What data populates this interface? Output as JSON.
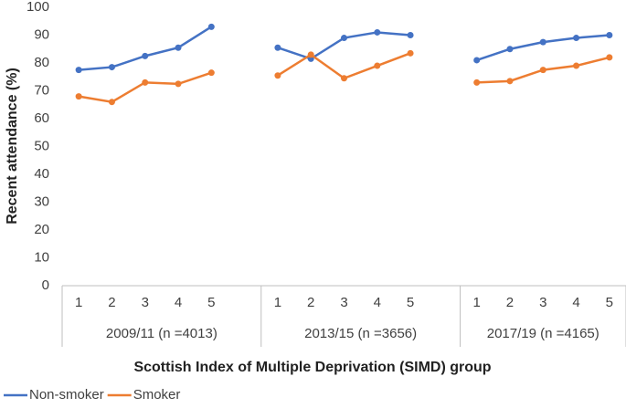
{
  "chart_data": {
    "type": "line",
    "x_label": "Scottish Index of Multiple Deprivation (SIMD) group",
    "y_label": "Recent attendance (%)",
    "categories": [
      "1",
      "2",
      "3",
      "4",
      "5",
      null,
      "1",
      "2",
      "3",
      "4",
      "5",
      null,
      "1",
      "2",
      "3",
      "4",
      "5"
    ],
    "groups": [
      "2009/11 (n =4013)",
      "2013/15 (n =3656)",
      "2017/19 (n =4165)"
    ],
    "series": [
      {
        "name": "Non-smoker",
        "color": "#4472c4",
        "values": [
          77.5,
          78.5,
          82.5,
          85.5,
          93,
          null,
          85.5,
          81.5,
          89,
          91,
          90,
          null,
          81,
          85,
          87.5,
          89,
          90
        ]
      },
      {
        "name": "Smoker",
        "color": "#ed7d31",
        "values": [
          68,
          66,
          73,
          72.5,
          76.5,
          null,
          75.5,
          83,
          74.5,
          79,
          83.5,
          null,
          73,
          73.5,
          77.5,
          79,
          82
        ]
      }
    ],
    "ylim": [
      0,
      100
    ],
    "yticks": [
      0,
      10,
      20,
      30,
      40,
      50,
      60,
      70,
      80,
      90,
      100
    ],
    "grid": false,
    "legend": "bottom-left"
  }
}
